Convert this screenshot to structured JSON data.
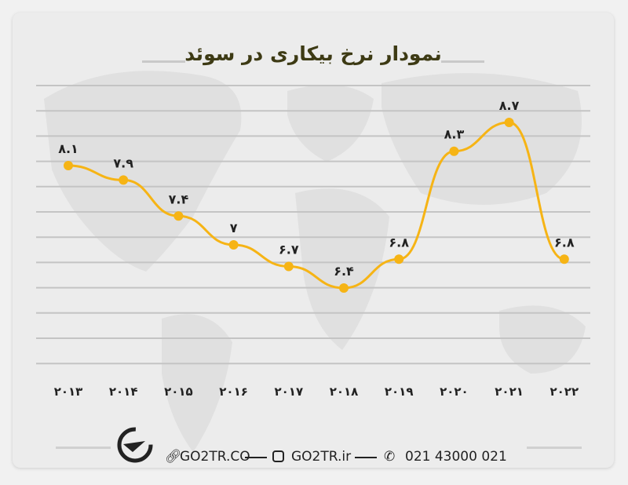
{
  "colors": {
    "line": "#f6b415",
    "title": "#3d3a14",
    "grid": "#c4c4c4"
  },
  "chart_data": {
    "type": "line",
    "title": "نمودار نرخ بیکاری در سوئد",
    "categories": [
      "۲۰۱۳",
      "۲۰۱۴",
      "۲۰۱۵",
      "۲۰۱۶",
      "۲۰۱۷",
      "۲۰۱۸",
      "۲۰۱۹",
      "۲۰۲۰",
      "۲۰۲۱",
      "۲۰۲۲"
    ],
    "x": [
      2013,
      2014,
      2015,
      2016,
      2017,
      2018,
      2019,
      2020,
      2021,
      2022
    ],
    "values": [
      8.1,
      7.9,
      7.4,
      7,
      6.7,
      6.4,
      6.8,
      8.3,
      8.7,
      6.8
    ],
    "data_labels": [
      "۸.۱",
      "۷.۹",
      "۷.۴",
      "۷",
      "۶.۷",
      "۶.۴",
      "۶.۸",
      "۸.۳",
      "۸.۷",
      "۶.۸"
    ],
    "xlabel": "",
    "ylabel": "",
    "grid": true,
    "y_axis_labels_shown": false
  },
  "footer": {
    "logo": "GO2TR",
    "website": "GO2TR.CO",
    "instagram": "GO2TR.ir",
    "phone": "021 43000 021",
    "icons": [
      "link-icon",
      "instagram-icon",
      "phone-icon"
    ]
  }
}
